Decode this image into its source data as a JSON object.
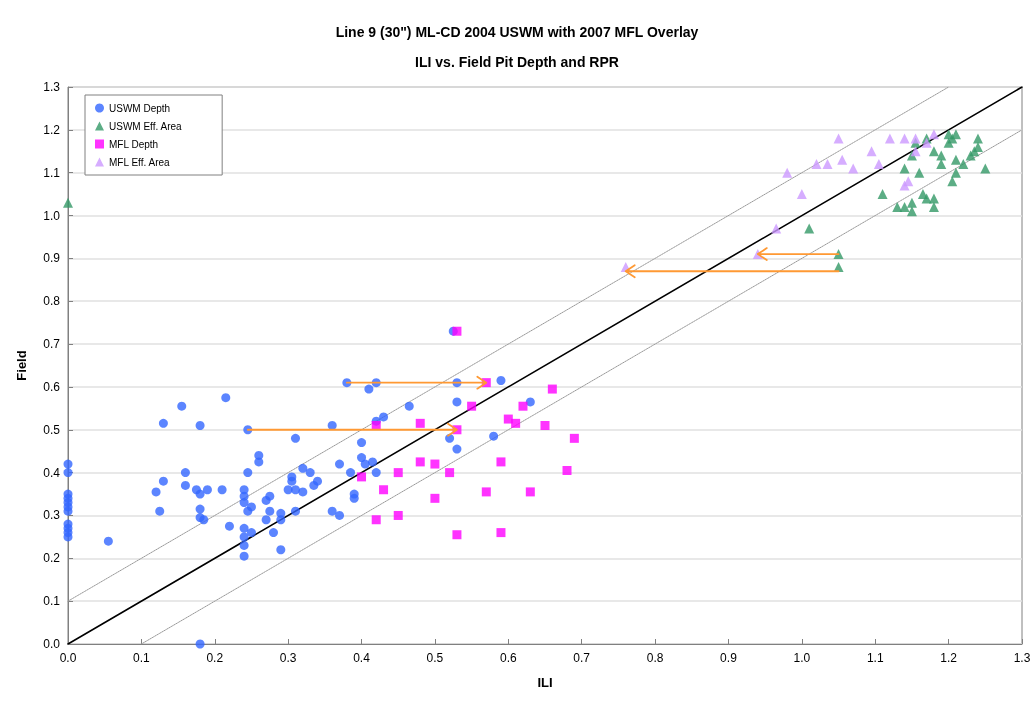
{
  "chart_data": {
    "type": "scatter",
    "title": "Line 9 (30\") ML-CD 2004 USWM with 2007 MFL Overlay",
    "subtitle": "ILI vs. Field Pit Depth and RPR",
    "xlabel": "ILI",
    "ylabel": "Field",
    "xlim": [
      0,
      1.3
    ],
    "ylim": [
      0,
      1.3
    ],
    "xticks": [
      {
        "value": 0,
        "label": "0.0"
      },
      {
        "value": 0.1,
        "label": "0.1"
      },
      {
        "value": 0.2,
        "label": "0.2"
      },
      {
        "value": 0.3,
        "label": "0.3"
      },
      {
        "value": 0.4,
        "label": "0.4"
      },
      {
        "value": 0.5,
        "label": "0.5"
      },
      {
        "value": 0.6,
        "label": "0.6"
      },
      {
        "value": 0.7,
        "label": "0.7"
      },
      {
        "value": 0.8,
        "label": "0.8"
      },
      {
        "value": 0.9,
        "label": "0.9"
      },
      {
        "value": 1,
        "label": "1.0"
      },
      {
        "value": 1.1,
        "label": "1.1"
      },
      {
        "value": 1.2,
        "label": "1.2"
      },
      {
        "value": 1.3,
        "label": "1.3"
      }
    ],
    "yticks": [
      {
        "value": 0,
        "label": "0.0"
      },
      {
        "value": 0.1,
        "label": "0.1"
      },
      {
        "value": 0.2,
        "label": "0.2"
      },
      {
        "value": 0.3,
        "label": "0.3"
      },
      {
        "value": 0.4,
        "label": "0.4"
      },
      {
        "value": 0.5,
        "label": "0.5"
      },
      {
        "value": 0.6,
        "label": "0.6"
      },
      {
        "value": 0.7,
        "label": "0.7"
      },
      {
        "value": 0.8,
        "label": "0.8"
      },
      {
        "value": 0.9,
        "label": "0.9"
      },
      {
        "value": 1,
        "label": "1.0"
      },
      {
        "value": 1.1,
        "label": "1.1"
      },
      {
        "value": 1.2,
        "label": "1.2"
      },
      {
        "value": 1.3,
        "label": "1.3"
      }
    ],
    "grid": "y",
    "legend": "top left",
    "series": [
      {
        "type": "line",
        "color": "#000000",
        "marker": "none",
        "line_style": "solid",
        "x": [
          0,
          1.3
        ],
        "values": [
          0,
          1.3
        ]
      },
      {
        "type": "line",
        "color": "#999999",
        "marker": "none",
        "line_style": "dotted",
        "x": [
          0,
          1.2
        ],
        "values": [
          0.1,
          1.3
        ]
      },
      {
        "type": "line",
        "color": "#999999",
        "marker": "none",
        "line_style": "dotted",
        "x": [
          0.1,
          1.3
        ],
        "values": [
          0,
          1.2
        ]
      },
      {
        "name": "USWM Depth",
        "color": "#3366ff",
        "marker": "circle",
        "x": [
          0,
          0,
          0,
          0,
          0,
          0,
          0,
          0,
          0,
          0,
          0,
          0.055,
          0.12,
          0.125,
          0.13,
          0.13,
          0.155,
          0.16,
          0.16,
          0.175,
          0.18,
          0.18,
          0.18,
          0.18,
          0.185,
          0.19,
          0.18,
          0.21,
          0.215,
          0.22,
          0.24,
          0.24,
          0.24,
          0.24,
          0.24,
          0.24,
          0.24,
          0.245,
          0.245,
          0.245,
          0.25,
          0.25,
          0.26,
          0.26,
          0.27,
          0.27,
          0.275,
          0.275,
          0.28,
          0.29,
          0.29,
          0.29,
          0.3,
          0.305,
          0.305,
          0.31,
          0.31,
          0.31,
          0.32,
          0.32,
          0.33,
          0.335,
          0.34,
          0.36,
          0.36,
          0.37,
          0.37,
          0.38,
          0.385,
          0.39,
          0.39,
          0.4,
          0.4,
          0.405,
          0.41,
          0.415,
          0.42,
          0.42,
          0.42,
          0.43,
          0.465,
          0.52,
          0.525,
          0.53,
          0.53,
          0.53,
          0.58,
          0.59,
          0.63
        ],
        "values": [
          0.42,
          0.4,
          0.35,
          0.34,
          0.33,
          0.32,
          0.31,
          0.28,
          0.27,
          0.26,
          0.25,
          0.24,
          0.355,
          0.31,
          0.515,
          0.38,
          0.555,
          0.4,
          0.37,
          0.36,
          0.51,
          0.35,
          0.295,
          0.315,
          0.29,
          0.36,
          0,
          0.36,
          0.575,
          0.275,
          0.36,
          0.345,
          0.33,
          0.27,
          0.25,
          0.23,
          0.205,
          0.5,
          0.4,
          0.31,
          0.32,
          0.26,
          0.44,
          0.425,
          0.335,
          0.29,
          0.345,
          0.31,
          0.26,
          0.305,
          0.29,
          0.22,
          0.36,
          0.39,
          0.38,
          0.48,
          0.36,
          0.31,
          0.41,
          0.355,
          0.4,
          0.37,
          0.38,
          0.51,
          0.31,
          0.3,
          0.42,
          0.61,
          0.4,
          0.35,
          0.34,
          0.47,
          0.435,
          0.42,
          0.595,
          0.425,
          0.61,
          0.52,
          0.4,
          0.53,
          0.555,
          0.48,
          0.73,
          0.61,
          0.565,
          0.455,
          0.485,
          0.615,
          0.565
        ]
      },
      {
        "name": "USWM Eff. Area",
        "color": "#339966",
        "marker": "triangle",
        "x": [
          0,
          1.01,
          1.05,
          1.05,
          1.11,
          1.13,
          1.14,
          1.15,
          1.15,
          1.14,
          1.15,
          1.155,
          1.16,
          1.165,
          1.17,
          1.17,
          1.18,
          1.18,
          1.18,
          1.19,
          1.19,
          1.2,
          1.2,
          1.205,
          1.21,
          1.21,
          1.205,
          1.21,
          1.22,
          1.23,
          1.235,
          1.24,
          1.24,
          1.25
        ],
        "values": [
          1.03,
          0.97,
          0.91,
          0.88,
          1.05,
          1.02,
          1.02,
          1.01,
          1.03,
          1.11,
          1.14,
          1.17,
          1.1,
          1.05,
          1.04,
          1.18,
          1.15,
          1.02,
          1.04,
          1.14,
          1.12,
          1.19,
          1.17,
          1.18,
          1.19,
          1.13,
          1.08,
          1.1,
          1.12,
          1.14,
          1.15,
          1.18,
          1.16,
          1.11
        ]
      },
      {
        "name": "MFL Depth",
        "color": "#ff00ff",
        "marker": "square",
        "x": [
          0.53,
          0.57,
          0.53,
          0.42,
          0.4,
          0.42,
          0.43,
          0.45,
          0.45,
          0.48,
          0.48,
          0.5,
          0.5,
          0.52,
          0.53,
          0.55,
          0.57,
          0.59,
          0.59,
          0.6,
          0.61,
          0.62,
          0.63,
          0.65,
          0.66,
          0.68,
          0.69
        ],
        "values": [
          0.73,
          0.61,
          0.5,
          0.51,
          0.39,
          0.29,
          0.36,
          0.4,
          0.3,
          0.515,
          0.425,
          0.42,
          0.34,
          0.4,
          0.255,
          0.555,
          0.355,
          0.425,
          0.26,
          0.525,
          0.515,
          0.555,
          0.355,
          0.51,
          0.595,
          0.405,
          0.48
        ]
      },
      {
        "name": "MFL Eff. Area",
        "color": "#cc99ff",
        "marker": "triangle",
        "x": [
          0.76,
          0.94,
          0.965,
          0.98,
          1,
          1.02,
          1.035,
          1.05,
          1.055,
          1.07,
          1.095,
          1.105,
          1.12,
          1.14,
          1.14,
          1.145,
          1.155,
          1.17,
          1.18,
          1.155
        ],
        "values": [
          0.88,
          0.91,
          0.97,
          1.1,
          1.05,
          1.12,
          1.12,
          1.18,
          1.13,
          1.11,
          1.15,
          1.12,
          1.18,
          1.18,
          1.07,
          1.08,
          1.18,
          1.17,
          1.19,
          1.15
        ]
      }
    ]
  }
}
